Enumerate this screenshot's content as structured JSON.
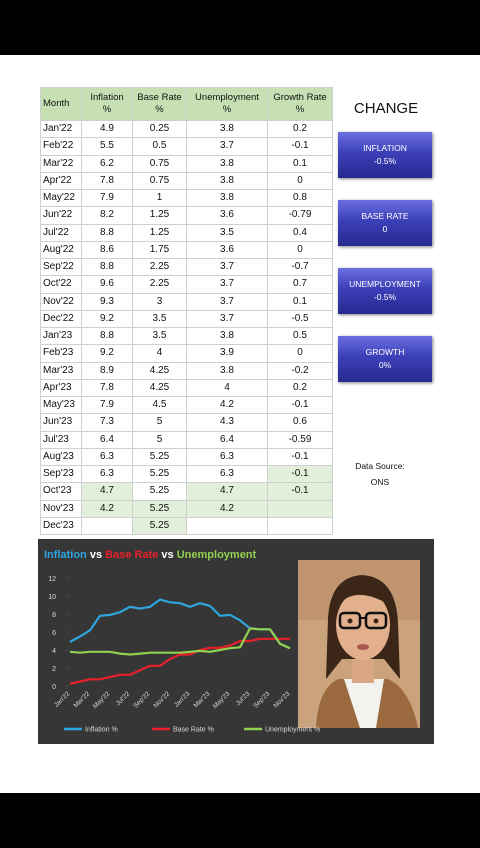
{
  "table": {
    "header": [
      [
        "Month"
      ],
      [
        "Inflation",
        "%"
      ],
      [
        "Base Rate",
        "%"
      ],
      [
        "Unemployment",
        "%"
      ],
      [
        "Growth Rate",
        "%"
      ]
    ],
    "rows": [
      [
        "Jan'22",
        "4.9",
        "0.25",
        "3.8",
        "0.2"
      ],
      [
        "Feb'22",
        "5.5",
        "0.5",
        "3.7",
        "-0.1"
      ],
      [
        "Mar'22",
        "6.2",
        "0.75",
        "3.8",
        "0.1"
      ],
      [
        "Apr'22",
        "7.8",
        "0.75",
        "3.8",
        "0"
      ],
      [
        "May'22",
        "7.9",
        "1",
        "3.8",
        "0.8"
      ],
      [
        "Jun'22",
        "8.2",
        "1.25",
        "3.6",
        "-0.79"
      ],
      [
        "Jul'22",
        "8.8",
        "1.25",
        "3.5",
        "0.4"
      ],
      [
        "Aug'22",
        "8.6",
        "1.75",
        "3.6",
        "0"
      ],
      [
        "Sep'22",
        "8.8",
        "2.25",
        "3.7",
        "-0.7"
      ],
      [
        "Oct'22",
        "9.6",
        "2.25",
        "3.7",
        "0.7"
      ],
      [
        "Nov'22",
        "9.3",
        "3",
        "3.7",
        "0.1"
      ],
      [
        "Dec'22",
        "9.2",
        "3.5",
        "3.7",
        "-0.5"
      ],
      [
        "Jan'23",
        "8.8",
        "3.5",
        "3.8",
        "0.5"
      ],
      [
        "Feb'23",
        "9.2",
        "4",
        "3.9",
        "0"
      ],
      [
        "Mar'23",
        "8.9",
        "4.25",
        "3.8",
        "-0.2"
      ],
      [
        "Apr'23",
        "7.8",
        "4.25",
        "4",
        "0.2"
      ],
      [
        "May'23",
        "7.9",
        "4.5",
        "4.2",
        "-0.1"
      ],
      [
        "Jun'23",
        "7.3",
        "5",
        "4.3",
        "0.6"
      ],
      [
        "Jul'23",
        "6.4",
        "5",
        "6.4",
        "-0.59"
      ],
      [
        "Aug'23",
        "6.3",
        "5.25",
        "6.3",
        "-0.1"
      ],
      [
        "Sep'23",
        "6.3",
        "5.25",
        "6.3",
        "-0.1"
      ],
      [
        "Oct'23",
        "4.7",
        "5.25",
        "4.7",
        "-0.1"
      ],
      [
        "Nov'23",
        "4.2",
        "5.25",
        "4.2",
        null
      ],
      [
        "Dec'23",
        null,
        "5.25",
        null,
        null
      ]
    ]
  },
  "change": {
    "heading": "CHANGE",
    "cards": [
      {
        "title": "INFLATION",
        "value": "-0.5%"
      },
      {
        "title": "BASE RATE",
        "value": "0"
      },
      {
        "title": "UNEMPLOYMENT",
        "value": "-0.5%"
      },
      {
        "title": "GROWTH",
        "value": "0%"
      }
    ]
  },
  "source": {
    "label": "Data Source:",
    "name": "ONS"
  },
  "chart_data": {
    "type": "line",
    "title_parts": [
      {
        "text": "Inflation",
        "color": "#2ea6dd"
      },
      {
        "text": "vs",
        "color": "#ffffff"
      },
      {
        "text": "Base Rate",
        "color": "#e8202a"
      },
      {
        "text": "vs",
        "color": "#ffffff"
      },
      {
        "text": "Unemployment",
        "color": "#92d050"
      }
    ],
    "categories": [
      "Jan'22",
      null,
      "Mar'22",
      null,
      "May'22",
      null,
      "Jul'22",
      null,
      "Sep'22",
      null,
      "Nov'22",
      null,
      "Jan'23",
      null,
      "Mar'23",
      null,
      "May'23",
      null,
      "Jul'23",
      null,
      "Sep'23",
      null,
      "Nov'23"
    ],
    "series": [
      {
        "name": "Inflation %",
        "color": "#2ea6dd",
        "values": [
          4.9,
          5.5,
          6.2,
          7.8,
          7.9,
          8.2,
          8.8,
          8.6,
          8.8,
          9.6,
          9.3,
          9.2,
          8.8,
          9.2,
          8.9,
          7.8,
          7.9,
          7.3,
          6.4,
          6.3,
          6.3,
          4.7,
          4.2
        ]
      },
      {
        "name": "Base Rate %",
        "color": "#e8202a",
        "values": [
          0.25,
          0.5,
          0.75,
          0.75,
          1,
          1.25,
          1.25,
          1.75,
          2.25,
          2.25,
          3,
          3.5,
          3.5,
          4,
          4.25,
          4.25,
          4.5,
          5,
          5,
          5.25,
          5.25,
          5.25,
          5.25
        ]
      },
      {
        "name": "Unemployment %",
        "color": "#92d050",
        "values": [
          3.8,
          3.7,
          3.8,
          3.8,
          3.8,
          3.6,
          3.5,
          3.6,
          3.7,
          3.7,
          3.7,
          3.7,
          3.8,
          3.9,
          3.8,
          4,
          4.2,
          4.3,
          6.4,
          6.3,
          6.3,
          4.7,
          4.2
        ]
      }
    ],
    "ylim": [
      0,
      12
    ],
    "yticks": [
      0,
      2,
      4,
      6,
      8,
      10,
      12
    ],
    "legend": "bottom"
  }
}
